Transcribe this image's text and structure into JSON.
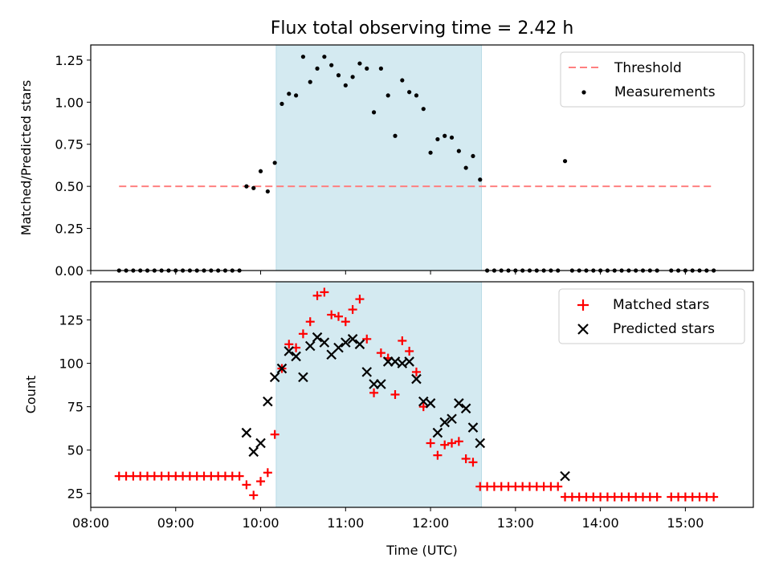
{
  "chart_data": [
    {
      "type": "scatter",
      "title": "Flux total observing time = 2.42 h",
      "xlabel": "",
      "ylabel": "Matched/Predicted stars",
      "xlim": [
        "08:00",
        "15:48"
      ],
      "ylim": [
        0,
        1.34
      ],
      "yticks": [
        "0.00",
        "0.25",
        "0.50",
        "0.75",
        "1.00",
        "1.25"
      ],
      "shaded_region": {
        "x": [
          "10:11",
          "12:36"
        ],
        "color": "#d4eaf1"
      },
      "legend": {
        "position": "top-right",
        "entries": [
          "Threshold",
          "Measurements"
        ]
      },
      "threshold": {
        "name": "Threshold",
        "value": 0.5,
        "x": [
          "08:20",
          "15:20"
        ],
        "color": "#ff8080"
      },
      "series": [
        {
          "name": "Measurements",
          "color": "#000000",
          "points": [
            [
              "08:20",
              0
            ],
            [
              "08:25",
              0
            ],
            [
              "08:30",
              0
            ],
            [
              "08:35",
              0
            ],
            [
              "08:40",
              0
            ],
            [
              "08:45",
              0
            ],
            [
              "08:50",
              0
            ],
            [
              "08:55",
              0
            ],
            [
              "09:00",
              0
            ],
            [
              "09:05",
              0
            ],
            [
              "09:10",
              0
            ],
            [
              "09:15",
              0
            ],
            [
              "09:20",
              0
            ],
            [
              "09:25",
              0
            ],
            [
              "09:30",
              0
            ],
            [
              "09:35",
              0
            ],
            [
              "09:40",
              0
            ],
            [
              "09:45",
              0
            ],
            [
              "09:50",
              0.5
            ],
            [
              "09:55",
              0.49
            ],
            [
              "10:00",
              0.59
            ],
            [
              "10:05",
              0.47
            ],
            [
              "10:10",
              0.64
            ],
            [
              "10:15",
              0.99
            ],
            [
              "10:20",
              1.05
            ],
            [
              "10:25",
              1.04
            ],
            [
              "10:30",
              1.27
            ],
            [
              "10:35",
              1.12
            ],
            [
              "10:40",
              1.2
            ],
            [
              "10:45",
              1.27
            ],
            [
              "10:50",
              1.22
            ],
            [
              "10:55",
              1.16
            ],
            [
              "11:00",
              1.1
            ],
            [
              "11:05",
              1.15
            ],
            [
              "11:10",
              1.23
            ],
            [
              "11:15",
              1.2
            ],
            [
              "11:20",
              0.94
            ],
            [
              "11:25",
              1.2
            ],
            [
              "11:30",
              1.04
            ],
            [
              "11:35",
              0.8
            ],
            [
              "11:40",
              1.13
            ],
            [
              "11:45",
              1.06
            ],
            [
              "11:50",
              1.04
            ],
            [
              "11:55",
              0.96
            ],
            [
              "12:00",
              0.7
            ],
            [
              "12:05",
              0.78
            ],
            [
              "12:10",
              0.8
            ],
            [
              "12:15",
              0.79
            ],
            [
              "12:20",
              0.71
            ],
            [
              "12:25",
              0.61
            ],
            [
              "12:30",
              0.68
            ],
            [
              "12:35",
              0.54
            ],
            [
              "12:40",
              0
            ],
            [
              "12:45",
              0
            ],
            [
              "12:50",
              0
            ],
            [
              "12:55",
              0
            ],
            [
              "13:00",
              0
            ],
            [
              "13:05",
              0
            ],
            [
              "13:10",
              0
            ],
            [
              "13:15",
              0
            ],
            [
              "13:20",
              0
            ],
            [
              "13:25",
              0
            ],
            [
              "13:30",
              0
            ],
            [
              "13:35",
              0.65
            ],
            [
              "13:40",
              0
            ],
            [
              "13:45",
              0
            ],
            [
              "13:50",
              0
            ],
            [
              "13:55",
              0
            ],
            [
              "14:00",
              0
            ],
            [
              "14:05",
              0
            ],
            [
              "14:10",
              0
            ],
            [
              "14:15",
              0
            ],
            [
              "14:20",
              0
            ],
            [
              "14:25",
              0
            ],
            [
              "14:30",
              0
            ],
            [
              "14:35",
              0
            ],
            [
              "14:40",
              0
            ],
            [
              "14:50",
              0
            ],
            [
              "14:55",
              0
            ],
            [
              "15:00",
              0
            ],
            [
              "15:05",
              0
            ],
            [
              "15:10",
              0
            ],
            [
              "15:15",
              0
            ],
            [
              "15:20",
              0
            ]
          ]
        }
      ]
    },
    {
      "type": "scatter",
      "title": "",
      "xlabel": "Time (UTC)",
      "ylabel": "Count",
      "xlim": [
        "08:00",
        "15:48"
      ],
      "ylim": [
        17,
        147
      ],
      "xticks": [
        "08:00",
        "09:00",
        "10:00",
        "11:00",
        "12:00",
        "13:00",
        "14:00",
        "15:00"
      ],
      "yticks": [
        "25",
        "50",
        "75",
        "100",
        "125"
      ],
      "shaded_region": {
        "x": [
          "10:11",
          "12:36"
        ],
        "color": "#d4eaf1"
      },
      "legend": {
        "position": "top-right",
        "entries": [
          "Matched stars",
          "Predicted stars"
        ]
      },
      "series": [
        {
          "name": "Matched stars",
          "marker": "plus",
          "color": "#ff0000",
          "points": [
            [
              "08:20",
              35
            ],
            [
              "08:25",
              35
            ],
            [
              "08:30",
              35
            ],
            [
              "08:35",
              35
            ],
            [
              "08:40",
              35
            ],
            [
              "08:45",
              35
            ],
            [
              "08:50",
              35
            ],
            [
              "08:55",
              35
            ],
            [
              "09:00",
              35
            ],
            [
              "09:05",
              35
            ],
            [
              "09:10",
              35
            ],
            [
              "09:15",
              35
            ],
            [
              "09:20",
              35
            ],
            [
              "09:25",
              35
            ],
            [
              "09:30",
              35
            ],
            [
              "09:35",
              35
            ],
            [
              "09:40",
              35
            ],
            [
              "09:45",
              35
            ],
            [
              "09:50",
              30
            ],
            [
              "09:55",
              24
            ],
            [
              "10:00",
              32
            ],
            [
              "10:05",
              37
            ],
            [
              "10:10",
              59
            ],
            [
              "10:15",
              97
            ],
            [
              "10:20",
              111
            ],
            [
              "10:25",
              109
            ],
            [
              "10:30",
              117
            ],
            [
              "10:35",
              124
            ],
            [
              "10:40",
              139
            ],
            [
              "10:45",
              141
            ],
            [
              "10:50",
              128
            ],
            [
              "10:55",
              127
            ],
            [
              "11:00",
              124
            ],
            [
              "11:05",
              131
            ],
            [
              "11:10",
              137
            ],
            [
              "11:15",
              114
            ],
            [
              "11:20",
              83
            ],
            [
              "11:25",
              106
            ],
            [
              "11:30",
              103
            ],
            [
              "11:35",
              82
            ],
            [
              "11:40",
              113
            ],
            [
              "11:45",
              107
            ],
            [
              "11:50",
              95
            ],
            [
              "11:55",
              75
            ],
            [
              "12:00",
              54
            ],
            [
              "12:05",
              47
            ],
            [
              "12:10",
              53
            ],
            [
              "12:15",
              54
            ],
            [
              "12:20",
              55
            ],
            [
              "12:25",
              45
            ],
            [
              "12:30",
              43
            ],
            [
              "12:35",
              29
            ],
            [
              "12:40",
              29
            ],
            [
              "12:45",
              29
            ],
            [
              "12:50",
              29
            ],
            [
              "12:55",
              29
            ],
            [
              "13:00",
              29
            ],
            [
              "13:05",
              29
            ],
            [
              "13:10",
              29
            ],
            [
              "13:15",
              29
            ],
            [
              "13:20",
              29
            ],
            [
              "13:25",
              29
            ],
            [
              "13:30",
              29
            ],
            [
              "13:35",
              23
            ],
            [
              "13:40",
              23
            ],
            [
              "13:45",
              23
            ],
            [
              "13:50",
              23
            ],
            [
              "13:55",
              23
            ],
            [
              "14:00",
              23
            ],
            [
              "14:05",
              23
            ],
            [
              "14:10",
              23
            ],
            [
              "14:15",
              23
            ],
            [
              "14:20",
              23
            ],
            [
              "14:25",
              23
            ],
            [
              "14:30",
              23
            ],
            [
              "14:35",
              23
            ],
            [
              "14:40",
              23
            ],
            [
              "14:50",
              23
            ],
            [
              "14:55",
              23
            ],
            [
              "15:00",
              23
            ],
            [
              "15:05",
              23
            ],
            [
              "15:10",
              23
            ],
            [
              "15:15",
              23
            ],
            [
              "15:20",
              23
            ]
          ]
        },
        {
          "name": "Predicted stars",
          "marker": "x",
          "color": "#000000",
          "points": [
            [
              "09:50",
              60
            ],
            [
              "09:55",
              49
            ],
            [
              "10:00",
              54
            ],
            [
              "10:05",
              78
            ],
            [
              "10:10",
              92
            ],
            [
              "10:15",
              97
            ],
            [
              "10:20",
              107
            ],
            [
              "10:25",
              104
            ],
            [
              "10:30",
              92
            ],
            [
              "10:35",
              110
            ],
            [
              "10:40",
              115
            ],
            [
              "10:45",
              112
            ],
            [
              "10:50",
              105
            ],
            [
              "10:55",
              109
            ],
            [
              "11:00",
              112
            ],
            [
              "11:05",
              114
            ],
            [
              "11:10",
              111
            ],
            [
              "11:15",
              95
            ],
            [
              "11:20",
              88
            ],
            [
              "11:25",
              88
            ],
            [
              "11:30",
              101
            ],
            [
              "11:35",
              101
            ],
            [
              "11:40",
              100
            ],
            [
              "11:45",
              101
            ],
            [
              "11:50",
              91
            ],
            [
              "11:55",
              78
            ],
            [
              "12:00",
              77
            ],
            [
              "12:05",
              60
            ],
            [
              "12:10",
              66
            ],
            [
              "12:15",
              68
            ],
            [
              "12:20",
              77
            ],
            [
              "12:25",
              74
            ],
            [
              "12:30",
              63
            ],
            [
              "12:35",
              54
            ],
            [
              "13:35",
              35
            ]
          ]
        }
      ]
    }
  ]
}
